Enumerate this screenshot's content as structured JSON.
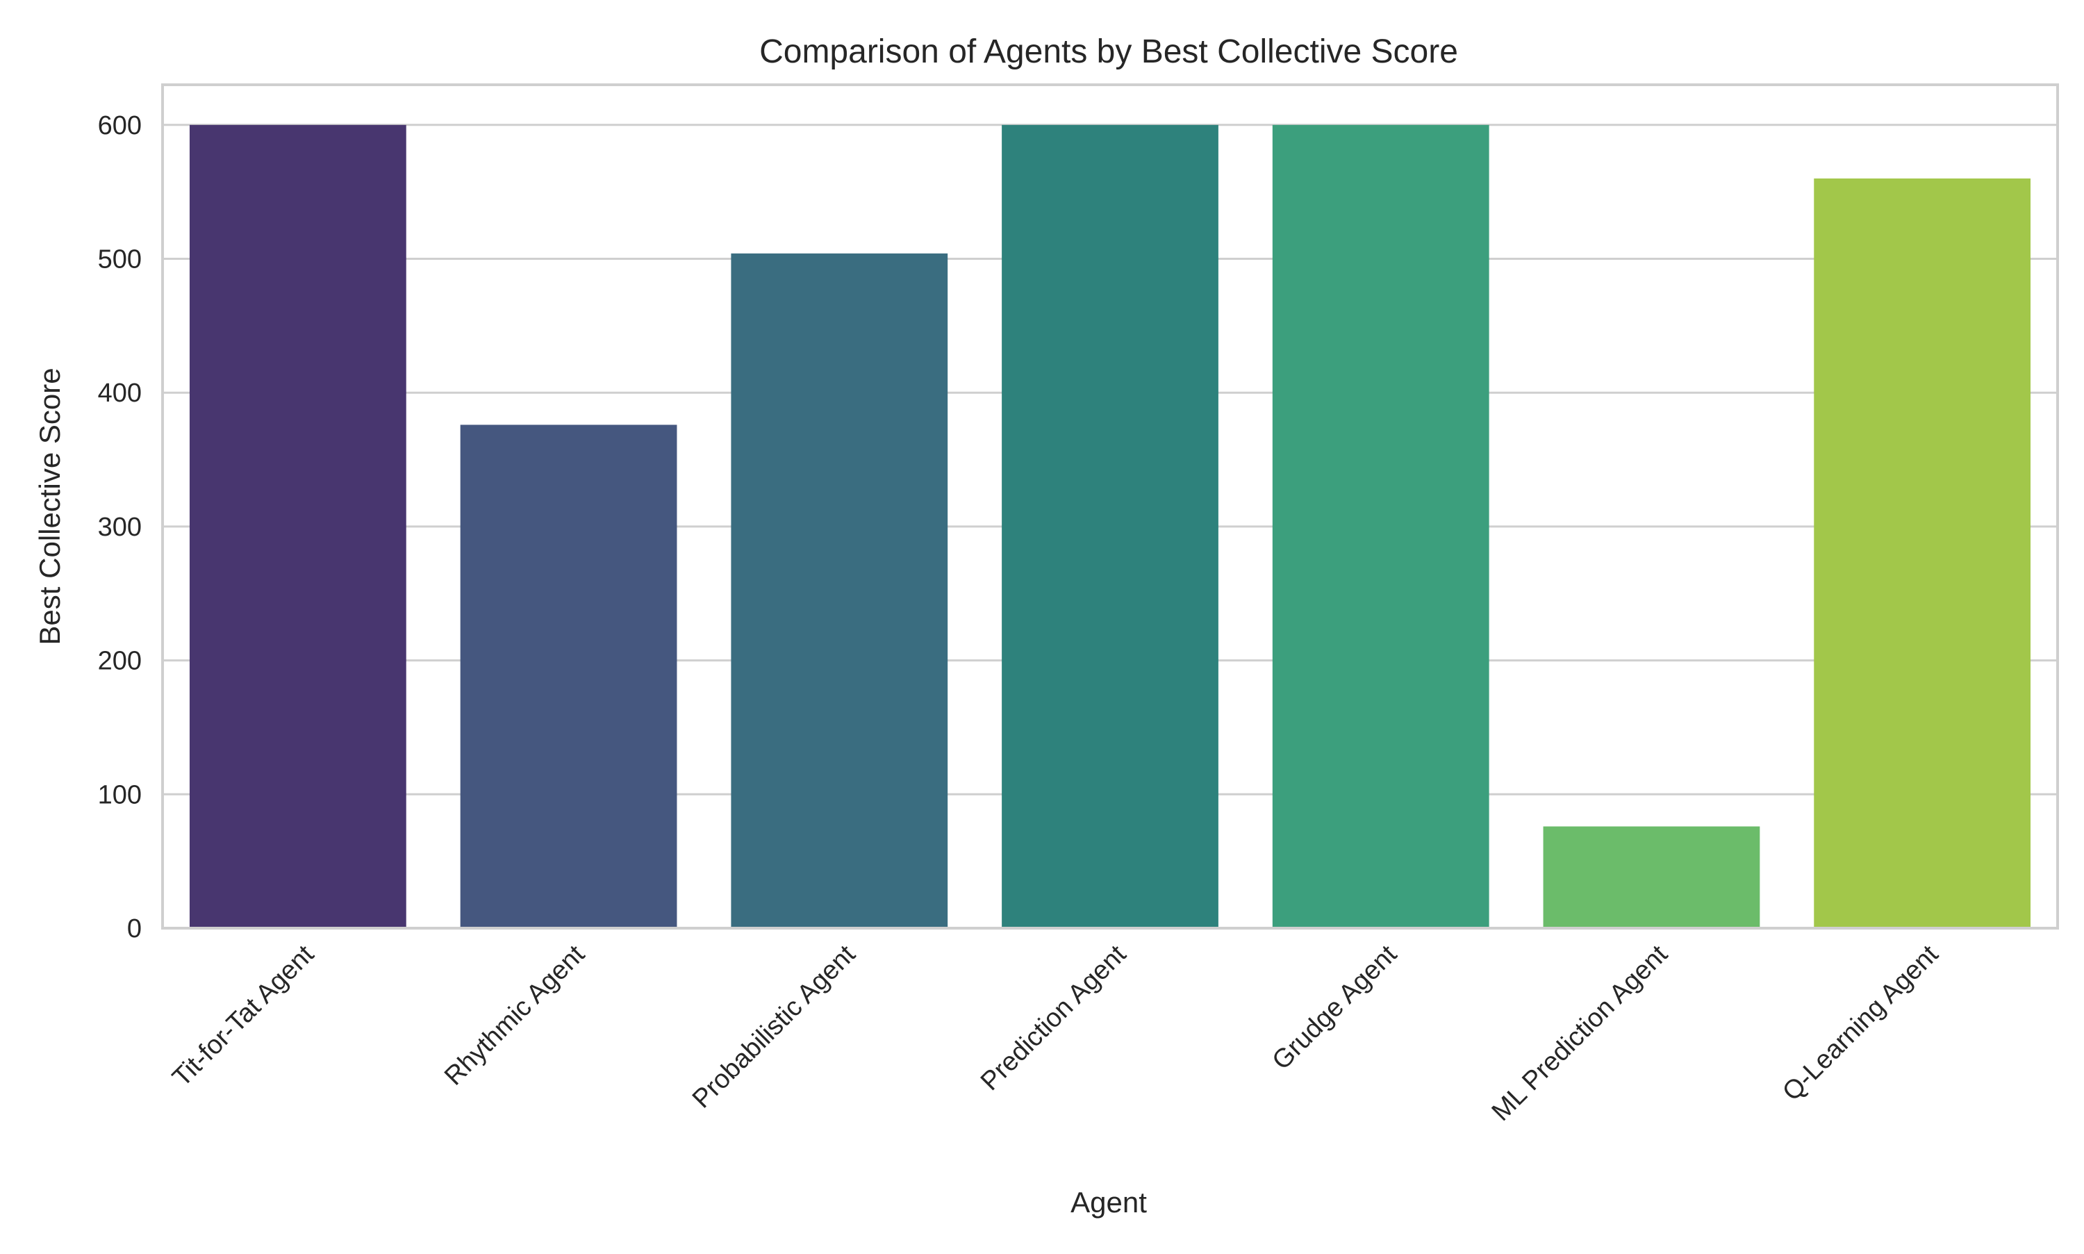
{
  "chart_data": {
    "type": "bar",
    "title": "Comparison of Agents by Best Collective Score",
    "xlabel": "Agent",
    "ylabel": "Best Collective Score",
    "ylim": [
      0,
      630
    ],
    "yticks": [
      0,
      100,
      200,
      300,
      400,
      500,
      600
    ],
    "grid": true,
    "categories": [
      "Tit-for-Tat Agent",
      "Rhythmic Agent",
      "Probabilistic Agent",
      "Prediction Agent",
      "Grudge Agent",
      "ML Prediction Agent",
      "Q-Learning Agent"
    ],
    "values": [
      600,
      376,
      504,
      600,
      600,
      76,
      560
    ],
    "colors": [
      "#48366f",
      "#45577f",
      "#3a6d80",
      "#2e827c",
      "#3c9f7d",
      "#6bbc6a",
      "#a2c74a"
    ],
    "style": {
      "grid_color": "#cfcfcf",
      "frame_color": "#cfcfcf"
    }
  }
}
